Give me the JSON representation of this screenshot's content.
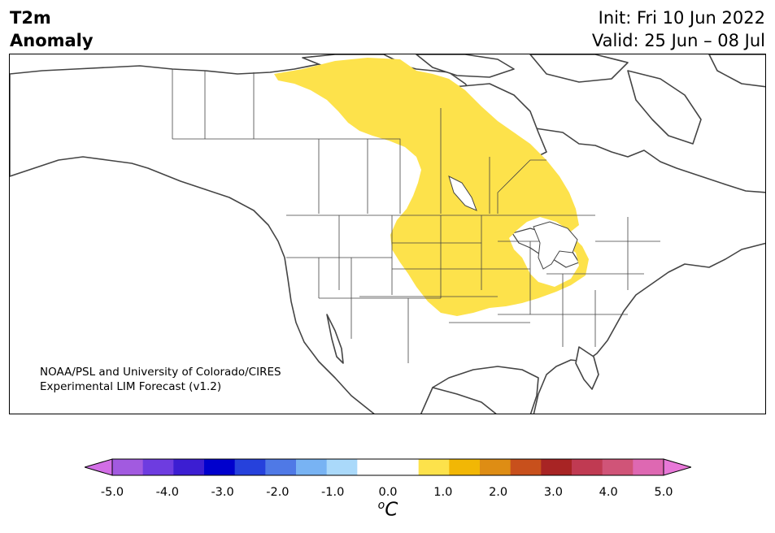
{
  "header": {
    "title_line1": "T2m",
    "title_line2": "Anomaly",
    "init": "Init: Fri 10 Jun 2022",
    "valid": "Valid: 25 Jun – 08 Jul"
  },
  "map": {
    "region": "North America",
    "credit_line1": "NOAA/PSL and University of Colorado/CIRES",
    "credit_line2": "Experimental LIM Forecast (v1.2)",
    "anomaly_fill_color": "#fde24b",
    "coastline_color": "#444444",
    "warm_anomaly_region": "central Canada through U.S. Great Plains and Midwest",
    "warm_anomaly_level": "0.5 to 1.0"
  },
  "colorbar": {
    "unit_base": "C",
    "unit_sup": "o",
    "ticks": [
      "-5.0",
      "-4.0",
      "-3.0",
      "-2.0",
      "-1.0",
      "0.0",
      "1.0",
      "2.0",
      "3.0",
      "4.0",
      "5.0"
    ],
    "low_extend_color": "#d26ee6",
    "high_extend_color": "#e878d8",
    "colors": [
      "#a25ae0",
      "#6e3ce0",
      "#3c1ed2",
      "#0000cd",
      "#2641dc",
      "#4f79e6",
      "#78b3f3",
      "#aad9fa",
      "#ffffff",
      "#ffffff",
      "#fde24b",
      "#f2b705",
      "#de8d14",
      "#c8501c",
      "#a82424",
      "#c03a52",
      "#d05478",
      "#de68b2"
    ]
  }
}
